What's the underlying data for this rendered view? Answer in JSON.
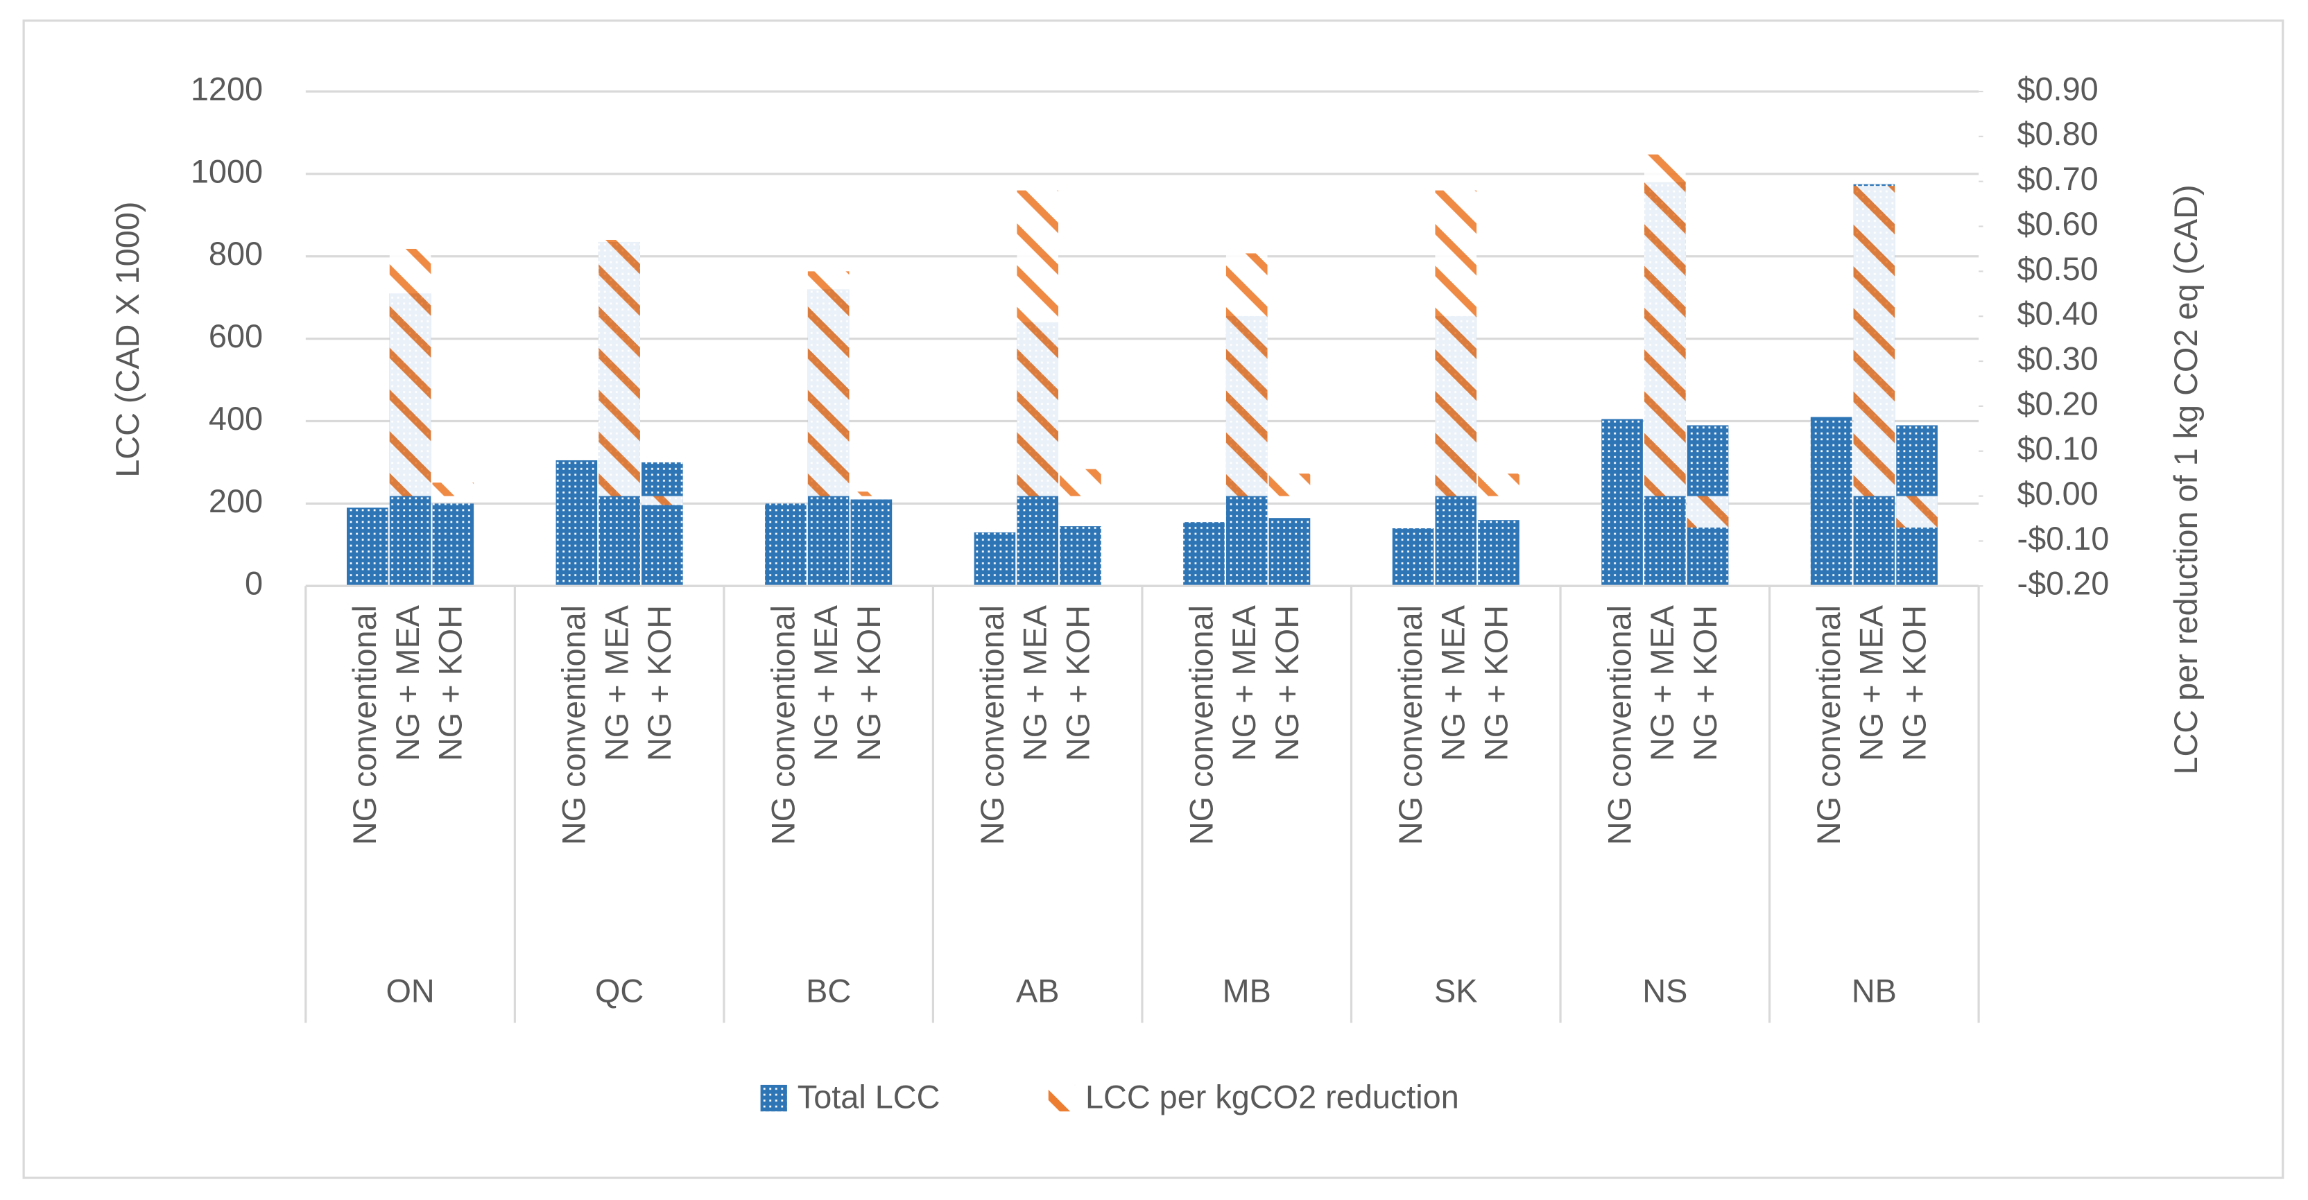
{
  "chart_data": {
    "type": "bar",
    "y_label": "LCC (CAD X 1000)",
    "y2_label": "LCC per reduction of 1 kg CO2 eq (CAD)",
    "groups": [
      "ON",
      "QC",
      "BC",
      "AB",
      "MB",
      "SK",
      "NS",
      "NB"
    ],
    "categories": [
      "NG conventional",
      "NG + MEA",
      "NG + KOH",
      "NG conventional",
      "NG + MEA",
      "NG + KOH",
      "NG conventional",
      "NG + MEA",
      "NG + KOH",
      "NG conventional",
      "NG + MEA",
      "NG + KOH",
      "NG conventional",
      "NG + MEA",
      "NG + KOH",
      "NG conventional",
      "NG + MEA",
      "NG + KOH",
      "NG conventional",
      "NG + MEA",
      "NG + KOH",
      "NG conventional",
      "NG + MEA",
      "NG + KOH"
    ],
    "series": [
      {
        "name": "Total LCC",
        "color": "#2e75b6",
        "values": [
          190,
          710,
          200,
          305,
          835,
          300,
          200,
          720,
          210,
          130,
          640,
          145,
          155,
          655,
          165,
          140,
          655,
          160,
          405,
          980,
          390,
          410,
          975,
          390
        ]
      },
      {
        "name": "LCC per kgCO2 reduction",
        "color": "#ed7d31",
        "axis": "y2",
        "values": [
          null,
          0.55,
          0.03,
          null,
          0.57,
          -0.02,
          null,
          0.5,
          0.01,
          null,
          0.68,
          0.06,
          null,
          0.54,
          0.05,
          null,
          0.68,
          0.05,
          null,
          0.76,
          -0.07,
          null,
          0.69,
          -0.07
        ]
      }
    ],
    "ylim": [
      0,
      1200
    ],
    "yticks": [
      0,
      200,
      400,
      600,
      800,
      1000,
      1200
    ],
    "y2lim": [
      -0.2,
      0.9
    ],
    "y2ticks": [
      {
        "value": -0.2,
        "label": "-$0.20"
      },
      {
        "value": -0.1,
        "label": "-$0.10"
      },
      {
        "value": 0,
        "label": "$0.00"
      },
      {
        "value": 0.1,
        "label": "$0.10"
      },
      {
        "value": 0.2,
        "label": "$0.20"
      },
      {
        "value": 0.3,
        "label": "$0.30"
      },
      {
        "value": 0.4,
        "label": "$0.40"
      },
      {
        "value": 0.5,
        "label": "$0.50"
      },
      {
        "value": 0.6,
        "label": "$0.60"
      },
      {
        "value": 0.7,
        "label": "$0.70"
      },
      {
        "value": 0.8,
        "label": "$0.80"
      },
      {
        "value": 0.9,
        "label": "$0.90"
      }
    ],
    "grid": true,
    "legend": "bottom"
  }
}
